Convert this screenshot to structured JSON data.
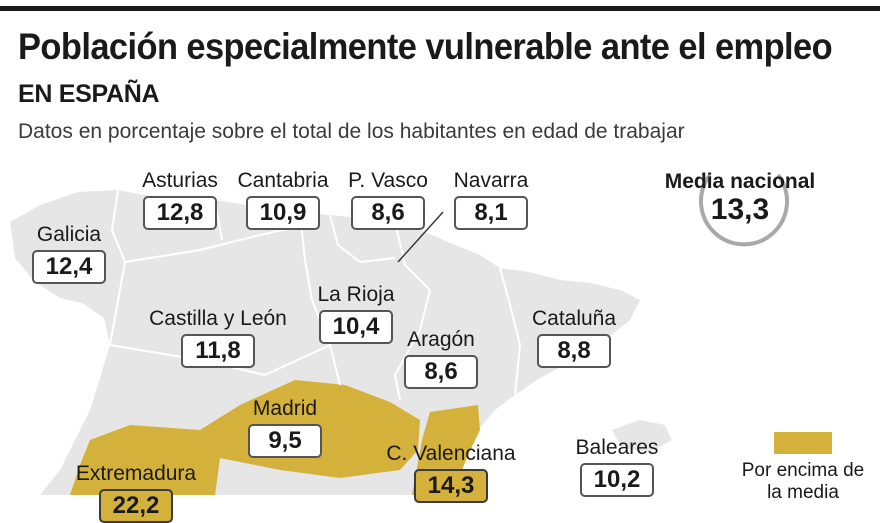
{
  "title": "Población especialmente vulnerable ante el empleo",
  "subtitle": "EN ESPAÑA",
  "description": "Datos en porcentaje sobre el total de los habitantes en edad de trabajar",
  "national_average": {
    "label": "Media nacional",
    "value": "13,3"
  },
  "regions": [
    {
      "name": "Asturias",
      "value": "12,8"
    },
    {
      "name": "Cantabria",
      "value": "10,9"
    },
    {
      "name": "P. Vasco",
      "value": "8,6"
    },
    {
      "name": "Navarra",
      "value": "8,1"
    },
    {
      "name": "Galicia",
      "value": "12,4"
    },
    {
      "name": "La Rioja",
      "value": "10,4"
    },
    {
      "name": "Castilla y León",
      "value": "11,8"
    },
    {
      "name": "Aragón",
      "value": "8,6"
    },
    {
      "name": "Cataluña",
      "value": "8,8"
    },
    {
      "name": "Madrid",
      "value": "9,5"
    },
    {
      "name": "C. Valenciana",
      "value": "14,3"
    },
    {
      "name": "Baleares",
      "value": "10,2"
    },
    {
      "name": "Extremadura",
      "value": "22,2"
    }
  ],
  "legend": {
    "label": "Por encima de la media"
  },
  "colors": {
    "above_average": "#d4b13a",
    "map_gray": "#e6e6e6",
    "border": "#ffffff",
    "text": "#1a1a1a"
  }
}
